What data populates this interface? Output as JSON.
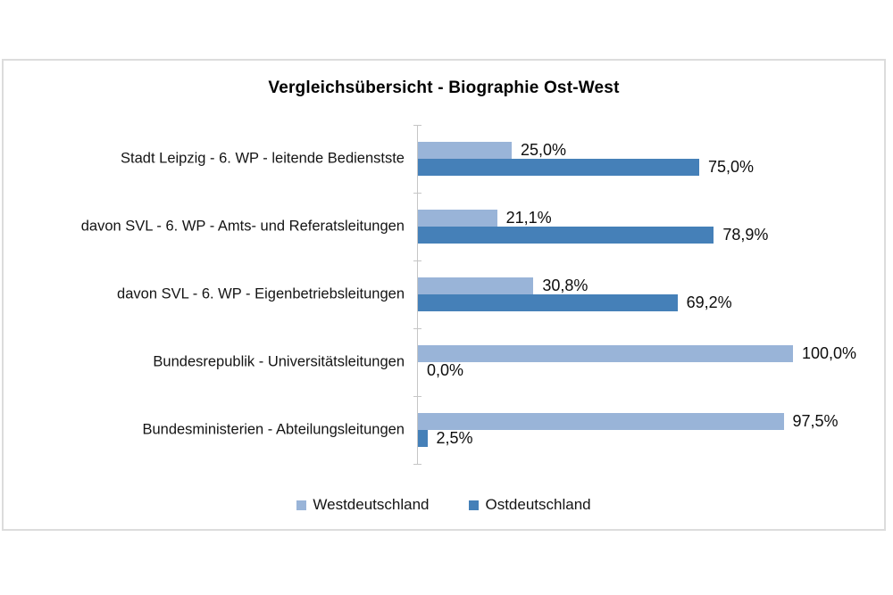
{
  "chart_data": {
    "type": "bar",
    "orientation": "horizontal",
    "title": "Vergleichsübersicht - Biographie Ost-West",
    "categories": [
      "Stadt Leipzig - 6. WP - leitende Bedienstste",
      "davon SVL - 6. WP - Amts- und Referatsleitungen",
      "davon SVL - 6. WP - Eigenbetriebsleitungen",
      "Bundesrepublik - Universitätsleitungen",
      "Bundesministerien - Abteilungsleitungen"
    ],
    "series": [
      {
        "name": "Westdeutschland",
        "color": "#99B4D8",
        "values": [
          25.0,
          21.1,
          30.8,
          100.0,
          97.5
        ],
        "labels": [
          "25,0%",
          "21,1%",
          "30,8%",
          "100,0%",
          "97,5%"
        ]
      },
      {
        "name": "Ostdeutschland",
        "color": "#4580B8",
        "values": [
          75.0,
          78.9,
          69.2,
          0.0,
          2.5
        ],
        "labels": [
          "75,0%",
          "78,9%",
          "69,2%",
          "0,0%",
          "2,5%"
        ]
      }
    ],
    "xlim": [
      0,
      100
    ],
    "gridlines": false,
    "legend_position": "bottom",
    "axis_color": "#c6c6c6",
    "frame_border_color": "#dcdcdc",
    "background_color": "#ffffff"
  }
}
